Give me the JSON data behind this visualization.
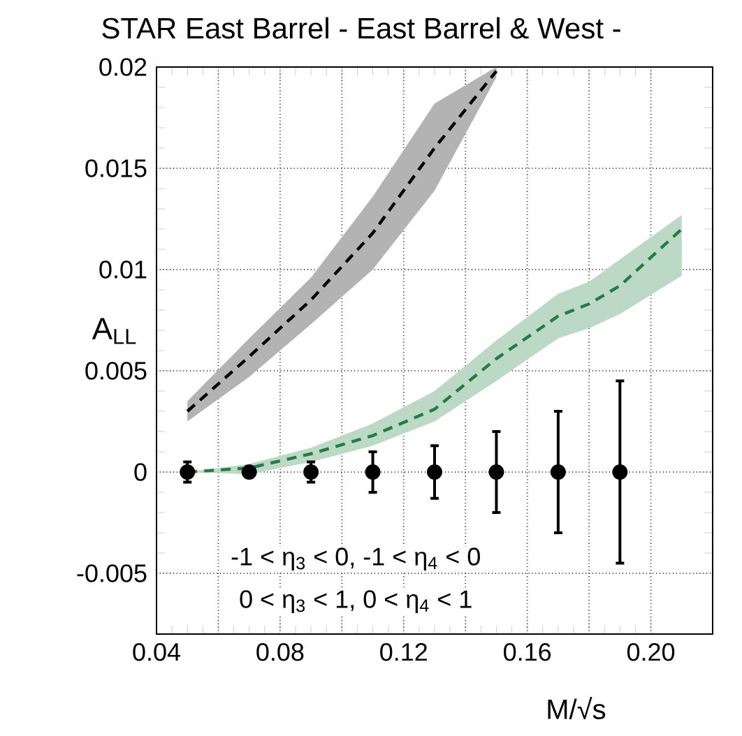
{
  "chart_data": {
    "type": "line",
    "title": "STAR East Barrel - East Barrel & West -",
    "xlabel": "M/√s",
    "ylabel": "A$_{LL}$",
    "xlim": [
      0.04,
      0.22
    ],
    "ylim": [
      -0.008,
      0.02
    ],
    "xticks": [
      0.04,
      {
        "value": 0.06,
        "label": null
      },
      0.08,
      {
        "value": 0.1,
        "label": null
      },
      0.12,
      {
        "value": 0.14,
        "label": null
      },
      0.16,
      {
        "value": 0.18,
        "label": null
      },
      {
        "value": 0.2,
        "label": "0.20"
      }
    ],
    "yticks": [
      -0.005,
      0,
      0.005,
      0.01,
      0.015,
      0.02
    ],
    "grid": true,
    "line_style": "dashed",
    "marker": "circle",
    "series": [
      {
        "color": "#000000",
        "marker": "none",
        "x": [
          0.05,
          0.07,
          0.09,
          0.11,
          0.13,
          0.15
        ],
        "values": [
          0.003,
          0.0057,
          0.0085,
          0.0118,
          0.016,
          0.0198
        ],
        "lower": [
          0.0025,
          0.0047,
          0.0073,
          0.01,
          0.0139,
          0.0195
        ],
        "upper": [
          0.0035,
          0.0066,
          0.0096,
          0.0136,
          0.0182,
          0.02
        ]
      },
      {
        "color": "#1f7f3f",
        "marker": "none",
        "x": [
          0.05,
          0.07,
          0.09,
          0.11,
          0.13,
          0.15,
          0.17,
          0.18,
          0.19,
          0.21
        ],
        "values": [
          0,
          0.0002,
          0.0009,
          0.0018,
          0.0031,
          0.0056,
          0.0077,
          0.0083,
          0.0092,
          0.012
        ],
        "lower": [
          0,
          -0.0001,
          0.0005,
          0.0013,
          0.0025,
          0.0045,
          0.0066,
          0.0071,
          0.0078,
          0.0097
        ],
        "upper": [
          0,
          0.0004,
          0.0012,
          0.0024,
          0.004,
          0.0065,
          0.0088,
          0.0094,
          0.0105,
          0.0127
        ]
      },
      {
        "type": "scatter",
        "color": "#000000",
        "x": [
          0.05,
          0.07,
          0.09,
          0.11,
          0.13,
          0.15,
          0.17,
          0.19
        ],
        "values": [
          0,
          0,
          0,
          0,
          0,
          0,
          0,
          0
        ],
        "errors": [
          0.0005,
          0.0002,
          0.0005,
          0.001,
          0.0013,
          0.002,
          0.003,
          0.0045
        ]
      }
    ],
    "annotations": [
      "-1 < η$_{3}$ < 0, -1 < η$_{4}$ < 0",
      "0 < η$_{3}$ < 1,  0 < η$_{4}$ < 1"
    ]
  }
}
